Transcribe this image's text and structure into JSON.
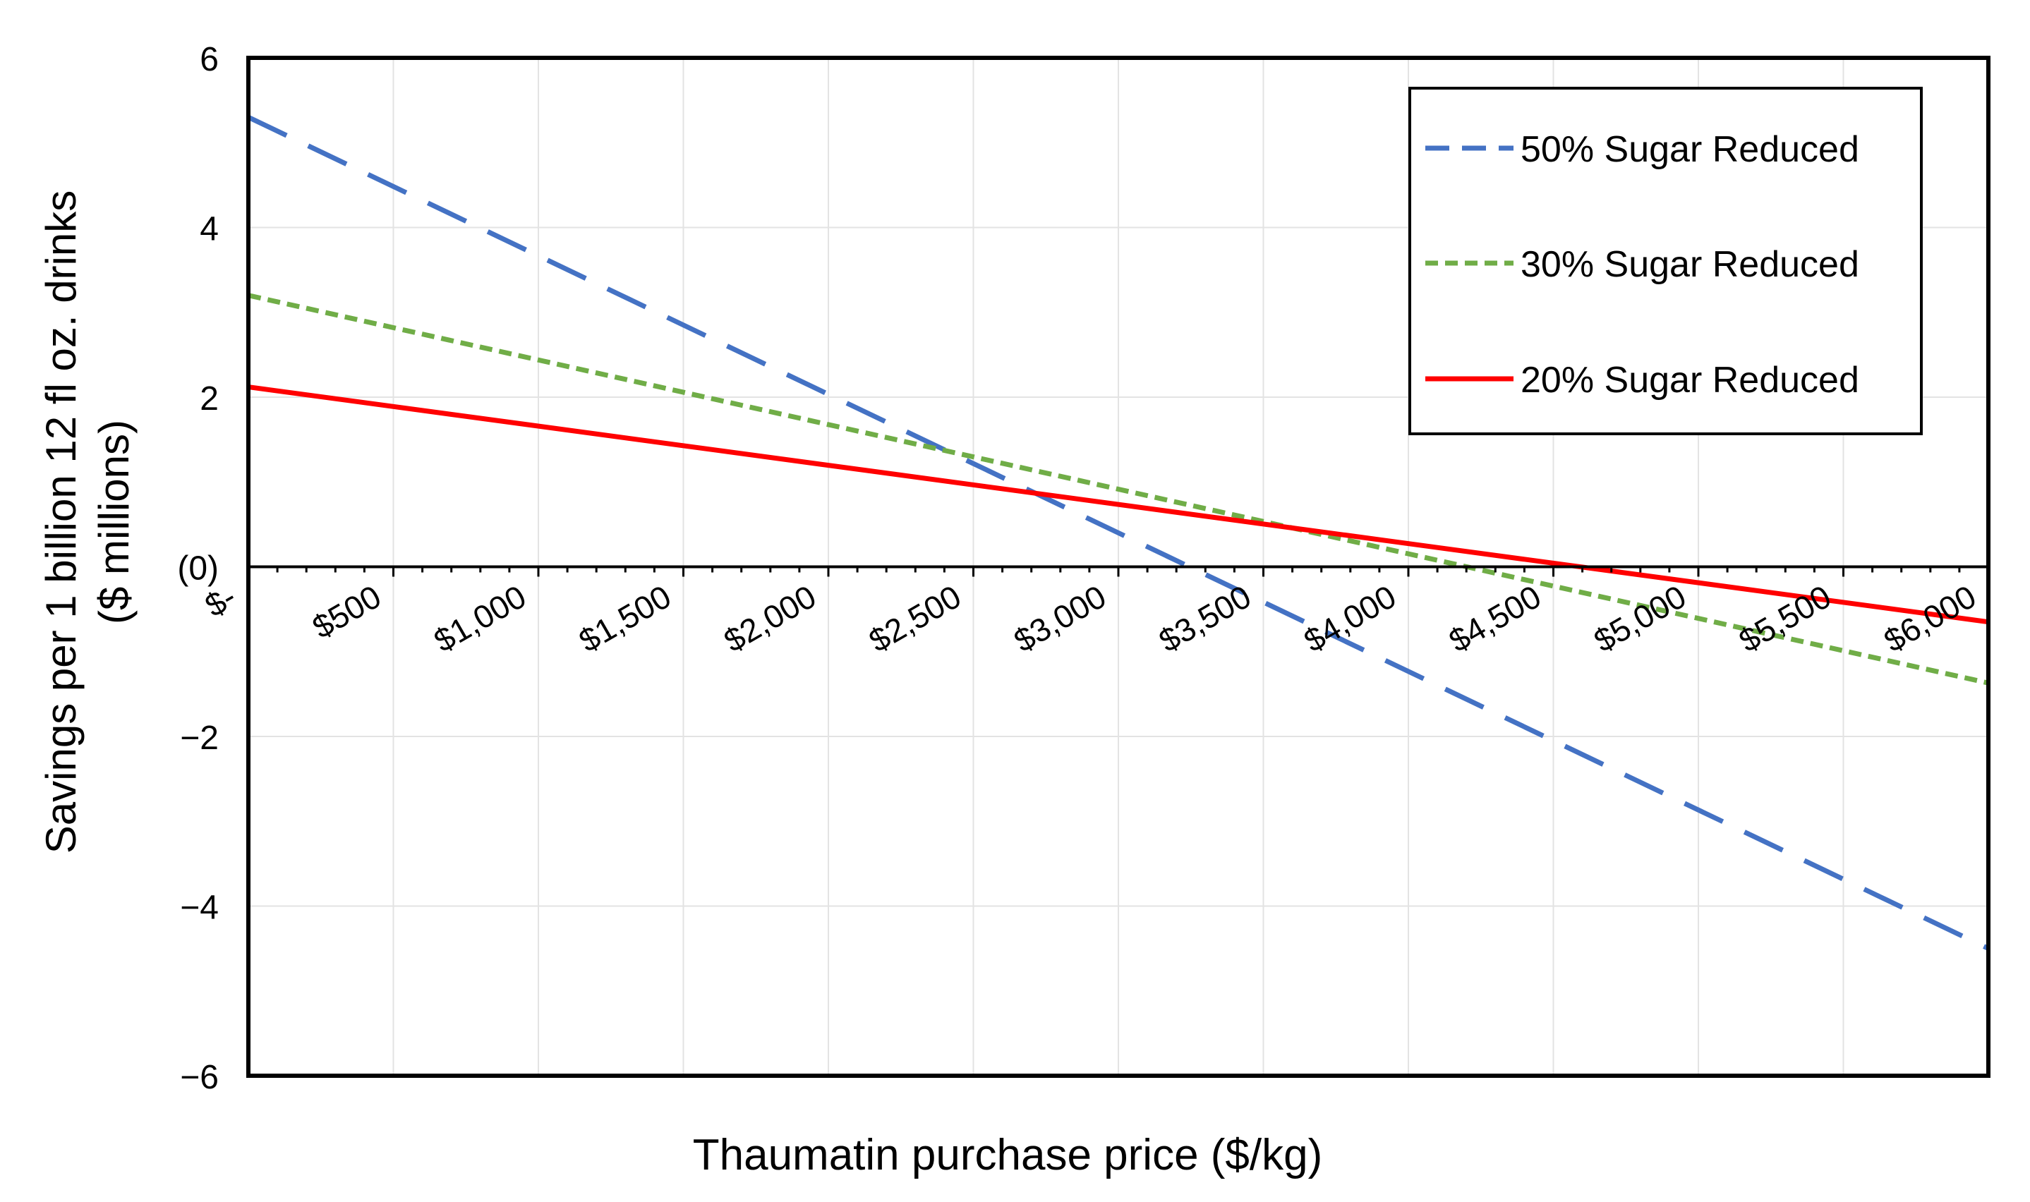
{
  "chart_data": {
    "type": "line",
    "xlabel": "Thaumatin purchase price ($/kg)",
    "ylabel_line1": "Savings per 1 billion 12 fl oz. drinks",
    "ylabel_line2": "($ millions)",
    "xlim": [
      0,
      6000
    ],
    "ylim": [
      -6,
      6
    ],
    "x_ticks": [
      0,
      500,
      1000,
      1500,
      2000,
      2500,
      3000,
      3500,
      4000,
      4500,
      5000,
      5500,
      6000
    ],
    "x_tick_labels": [
      "$-",
      "$500",
      "$1,000",
      "$1,500",
      "$2,000",
      "$2,500",
      "$3,000",
      "$3,500",
      "$4,000",
      "$4,500",
      "$5,000",
      "$5,500",
      "$6,000"
    ],
    "y_ticks": [
      6,
      4,
      2,
      0,
      -2,
      -4,
      -6
    ],
    "y_tick_labels": [
      "6",
      "4",
      "2",
      "(0)",
      "−2",
      "−4",
      "−6"
    ],
    "grid": true,
    "legend_position": "top-right",
    "x": [
      0,
      6000
    ],
    "series": [
      {
        "name": "50% Sugar Reduced",
        "color": "#4472C4",
        "style": "long-dash",
        "values": [
          5.3,
          -4.5
        ]
      },
      {
        "name": "30% Sugar Reduced",
        "color": "#70AD47",
        "style": "short-dash",
        "values": [
          3.2,
          -1.37
        ]
      },
      {
        "name": "20% Sugar Reduced",
        "color": "#FF0000",
        "style": "solid",
        "values": [
          2.12,
          -0.65
        ]
      }
    ]
  }
}
